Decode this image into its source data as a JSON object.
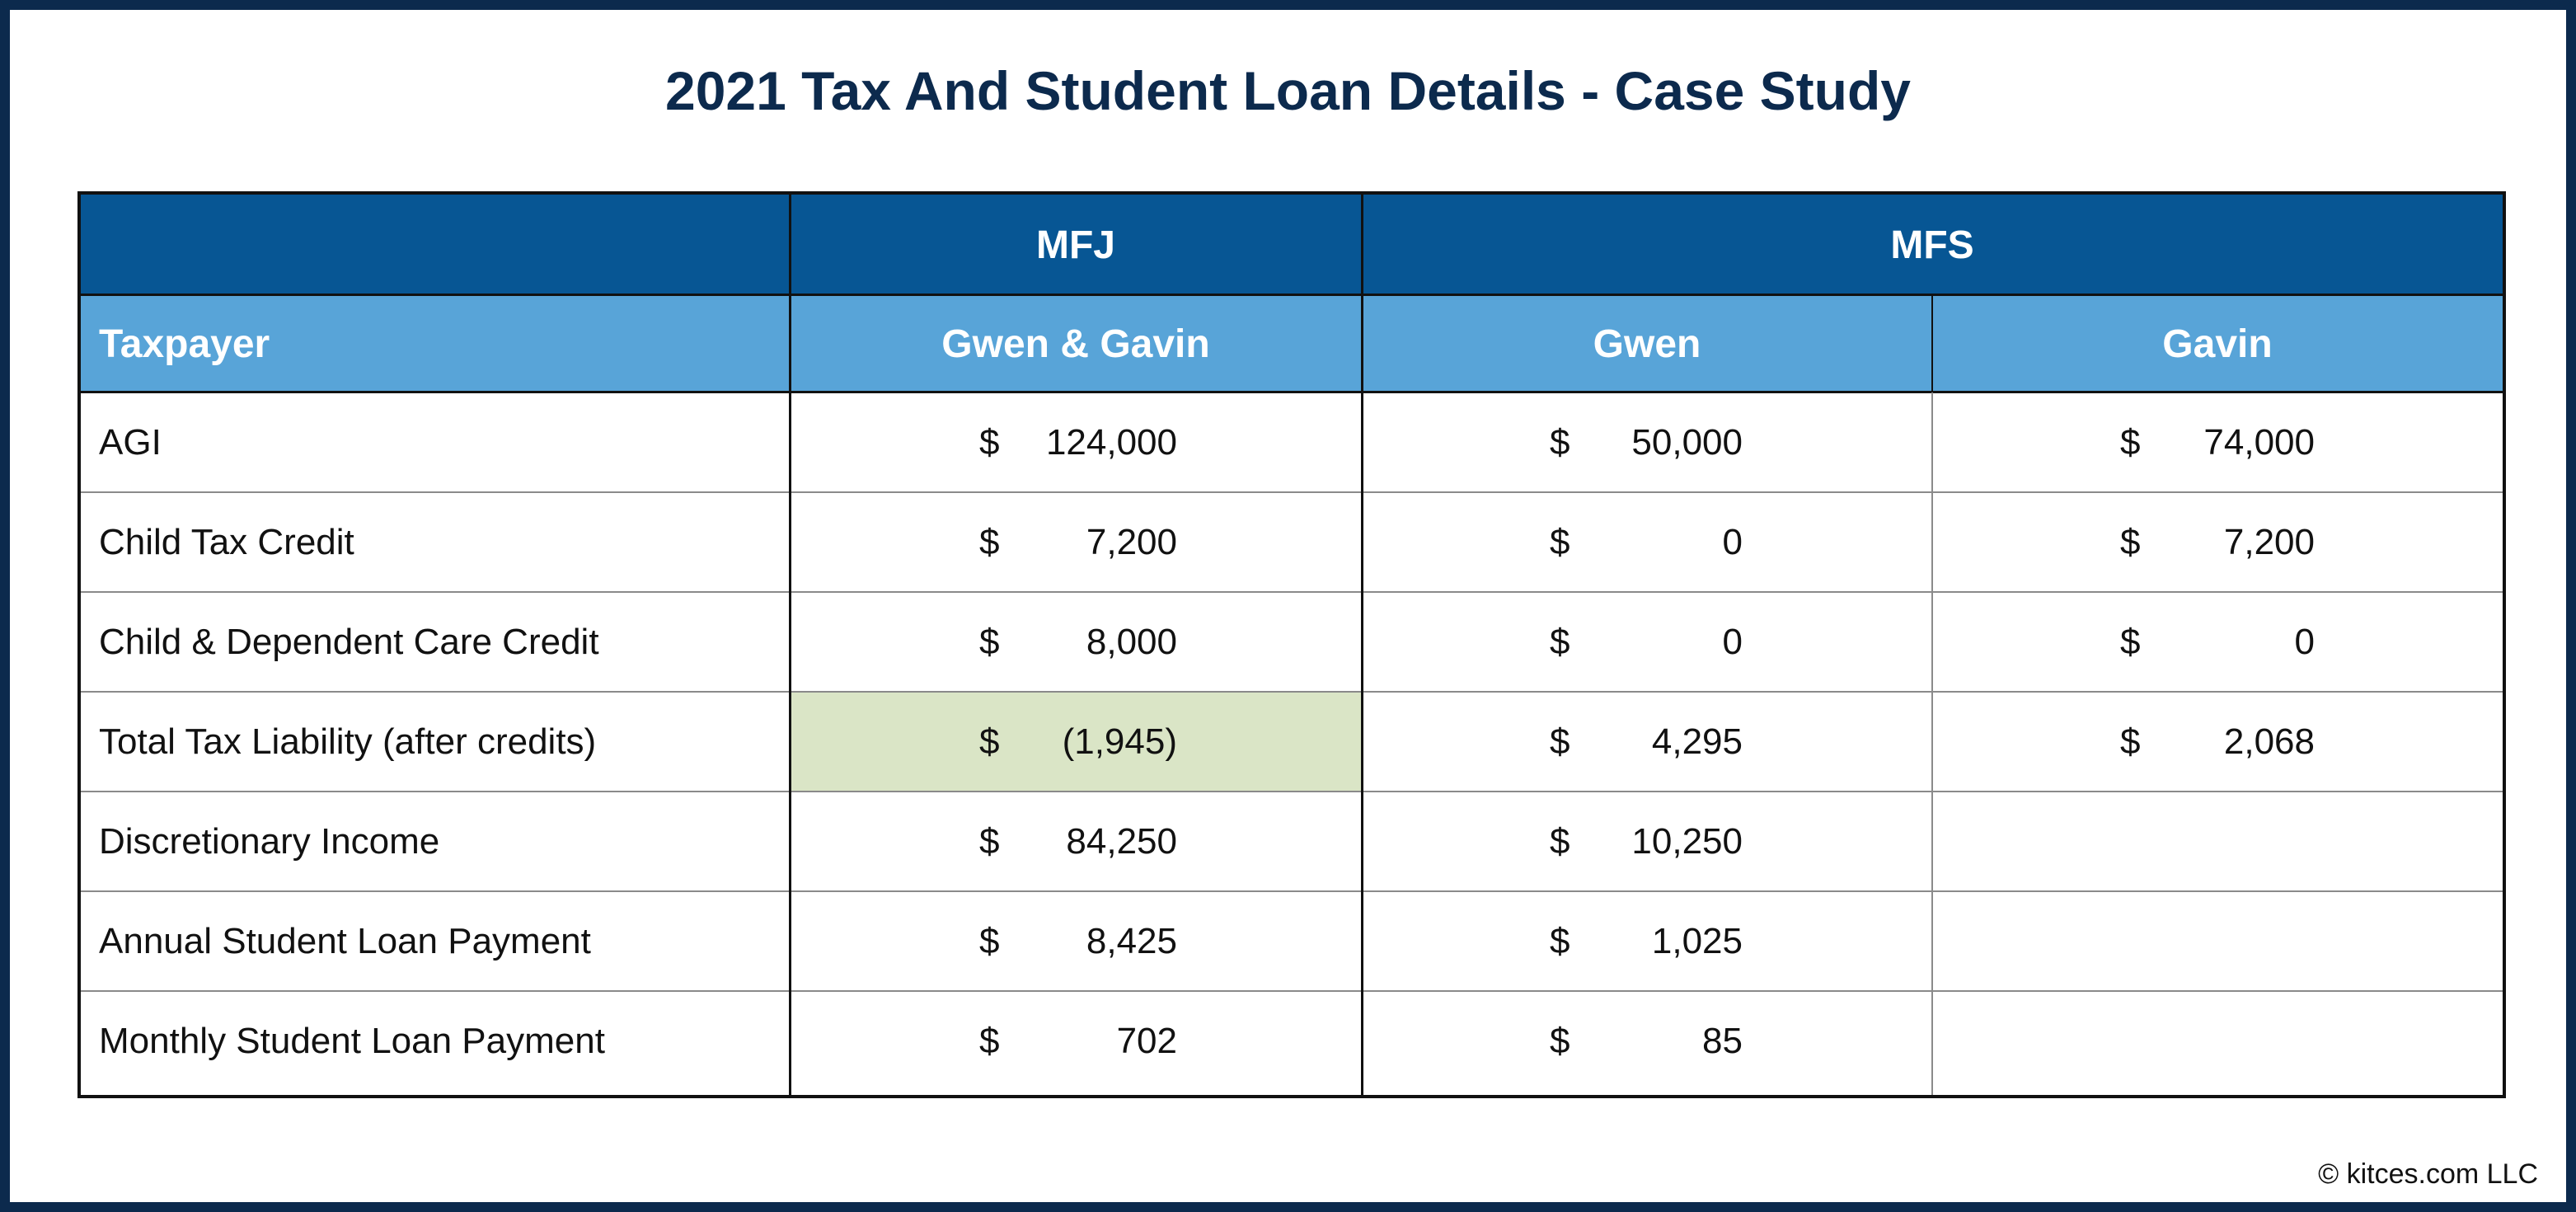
{
  "title": "2021 Tax And Student Loan Details - Case Study",
  "table": {
    "group_headers": {
      "blank": "",
      "mfj": "MFJ",
      "mfs": "MFS"
    },
    "column_headers": {
      "taxpayer": "Taxpayer",
      "mfj_joint": "Gwen & Gavin",
      "mfs_gwen": "Gwen",
      "mfs_gavin": "Gavin"
    },
    "rows": [
      {
        "label": "AGI",
        "mfj": {
          "dollar": "$",
          "amount": "124,000"
        },
        "gwen": {
          "dollar": "$",
          "amount": "50,000"
        },
        "gavin": {
          "dollar": "$",
          "amount": "74,000"
        }
      },
      {
        "label": "Child Tax Credit",
        "mfj": {
          "dollar": "$",
          "amount": "7,200"
        },
        "gwen": {
          "dollar": "$",
          "amount": "0"
        },
        "gavin": {
          "dollar": "$",
          "amount": "7,200"
        }
      },
      {
        "label": "Child & Dependent Care Credit",
        "mfj": {
          "dollar": "$",
          "amount": "8,000"
        },
        "gwen": {
          "dollar": "$",
          "amount": "0"
        },
        "gavin": {
          "dollar": "$",
          "amount": "0"
        }
      },
      {
        "label": "Total Tax Liability (after credits)",
        "mfj": {
          "dollar": "$",
          "amount": "(1,945)"
        },
        "gwen": {
          "dollar": "$",
          "amount": "4,295"
        },
        "gavin": {
          "dollar": "$",
          "amount": "2,068"
        }
      },
      {
        "label": "Discretionary Income",
        "mfj": {
          "dollar": "$",
          "amount": "84,250"
        },
        "gwen": {
          "dollar": "$",
          "amount": "10,250"
        },
        "gavin": {
          "dollar": "",
          "amount": ""
        }
      },
      {
        "label": "Annual Student Loan Payment",
        "mfj": {
          "dollar": "$",
          "amount": "8,425"
        },
        "gwen": {
          "dollar": "$",
          "amount": "1,025"
        },
        "gavin": {
          "dollar": "",
          "amount": ""
        }
      },
      {
        "label": "Monthly Student Loan Payment",
        "mfj": {
          "dollar": "$",
          "amount": "702"
        },
        "gwen": {
          "dollar": "$",
          "amount": "85"
        },
        "gavin": {
          "dollar": "",
          "amount": ""
        }
      }
    ]
  },
  "colors": {
    "frame": "#0c2a4d",
    "header_dark": "#075694",
    "header_light": "#58a4d8",
    "highlight": "#dae5c6"
  },
  "copyright": "© kitces.com LLC"
}
